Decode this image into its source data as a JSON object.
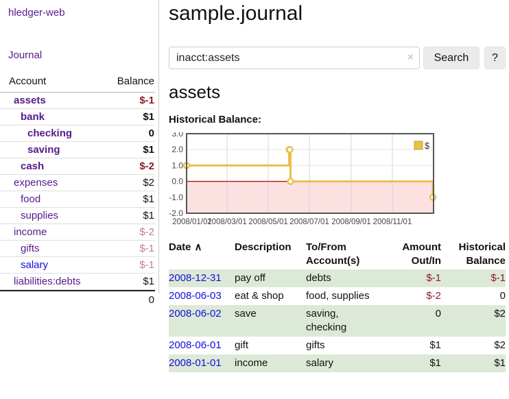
{
  "brand": "hledger-web",
  "nav": {
    "journal": "Journal"
  },
  "colors": {
    "purple": "#551a8b",
    "linkBlue": "#0f0fd9",
    "negRed": "#8e1b28",
    "fadedRed": "#c07f83",
    "rowGreen": "#dde9d7",
    "chartGold": "#e8c04a",
    "chartGoldBorder": "#c7a22b",
    "pinkRegion": "#fde1e1",
    "zeroLine": "#a81414"
  },
  "sidebar": {
    "header": {
      "account": "Account",
      "balance": "Balance"
    },
    "accounts": [
      {
        "name": "assets",
        "depth": 1,
        "bold": true,
        "blue": false,
        "balance": "$-1",
        "bal_style": "neg"
      },
      {
        "name": "bank",
        "depth": 2,
        "bold": true,
        "blue": false,
        "balance": "$1",
        "bal_style": ""
      },
      {
        "name": "checking",
        "depth": 3,
        "bold": true,
        "blue": false,
        "balance": "0",
        "bal_style": ""
      },
      {
        "name": "saving",
        "depth": 3,
        "bold": true,
        "blue": false,
        "balance": "$1",
        "bal_style": ""
      },
      {
        "name": "cash",
        "depth": 2,
        "bold": true,
        "blue": false,
        "balance": "$-2",
        "bal_style": "neg"
      },
      {
        "name": "expenses",
        "depth": 1,
        "bold": false,
        "blue": false,
        "balance": "$2",
        "bal_style": ""
      },
      {
        "name": "food",
        "depth": 2,
        "bold": false,
        "blue": false,
        "balance": "$1",
        "bal_style": ""
      },
      {
        "name": "supplies",
        "depth": 2,
        "bold": false,
        "blue": false,
        "balance": "$1",
        "bal_style": ""
      },
      {
        "name": "income",
        "depth": 1,
        "bold": false,
        "blue": false,
        "balance": "$-2",
        "bal_style": "neg-faded"
      },
      {
        "name": "gifts",
        "depth": 2,
        "bold": false,
        "blue": false,
        "balance": "$-1",
        "bal_style": "neg-faded"
      },
      {
        "name": "salary",
        "depth": 2,
        "bold": false,
        "blue": true,
        "balance": "$-1",
        "bal_style": "neg-faded"
      },
      {
        "name": "liabilities:debts",
        "depth": 1,
        "bold": false,
        "blue": false,
        "balance": "$1",
        "bal_style": ""
      }
    ],
    "total": "0"
  },
  "main": {
    "title": "sample.journal",
    "search": {
      "value": "inacct:assets",
      "clear": "×",
      "search_button": "Search",
      "help_button": "?"
    },
    "heading": "assets",
    "chart_title": "Historical Balance:"
  },
  "chart_data": {
    "type": "line",
    "step": true,
    "title": "Historical Balance",
    "series": [
      {
        "name": "$",
        "points": [
          [
            "2008-01-01",
            1
          ],
          [
            "2008-06-01",
            2
          ],
          [
            "2008-06-02",
            2
          ],
          [
            "2008-06-03",
            0
          ],
          [
            "2008-12-31",
            -1
          ]
        ]
      }
    ],
    "x_ticks": [
      "2008/01/01",
      "2008/03/01",
      "2008/05/01",
      "2008/07/01",
      "2008/09/01",
      "2008/11/01"
    ],
    "y_ticks": [
      3.0,
      2.0,
      1.0,
      0.0,
      -1.0,
      -2.0
    ],
    "ylim": [
      -2,
      3
    ],
    "xlim": [
      "2008-01-01",
      "2009-01-01"
    ],
    "grid": true,
    "legend_position": "top-right",
    "negative_region": true
  },
  "register": {
    "headers": {
      "date": "Date",
      "sort_icon": "∧",
      "description": "Description",
      "accounts": "To/From Account(s)",
      "amount": "Amount Out/In",
      "balance": "Historical Balance"
    },
    "rows": [
      {
        "date": "2008-12-31",
        "description": "pay off",
        "accounts": "debts",
        "amount": "$-1",
        "amount_neg": true,
        "balance": "$-1",
        "balance_neg": true
      },
      {
        "date": "2008-06-03",
        "description": "eat & shop",
        "accounts": "food, supplies",
        "amount": "$-2",
        "amount_neg": true,
        "balance": "0",
        "balance_neg": false
      },
      {
        "date": "2008-06-02",
        "description": "save",
        "accounts": "saving, checking",
        "amount": "0",
        "amount_neg": false,
        "balance": "$2",
        "balance_neg": false
      },
      {
        "date": "2008-06-01",
        "description": "gift",
        "accounts": "gifts",
        "amount": "$1",
        "amount_neg": false,
        "balance": "$2",
        "balance_neg": false
      },
      {
        "date": "2008-01-01",
        "description": "income",
        "accounts": "salary",
        "amount": "$1",
        "amount_neg": false,
        "balance": "$1",
        "balance_neg": false
      }
    ]
  }
}
